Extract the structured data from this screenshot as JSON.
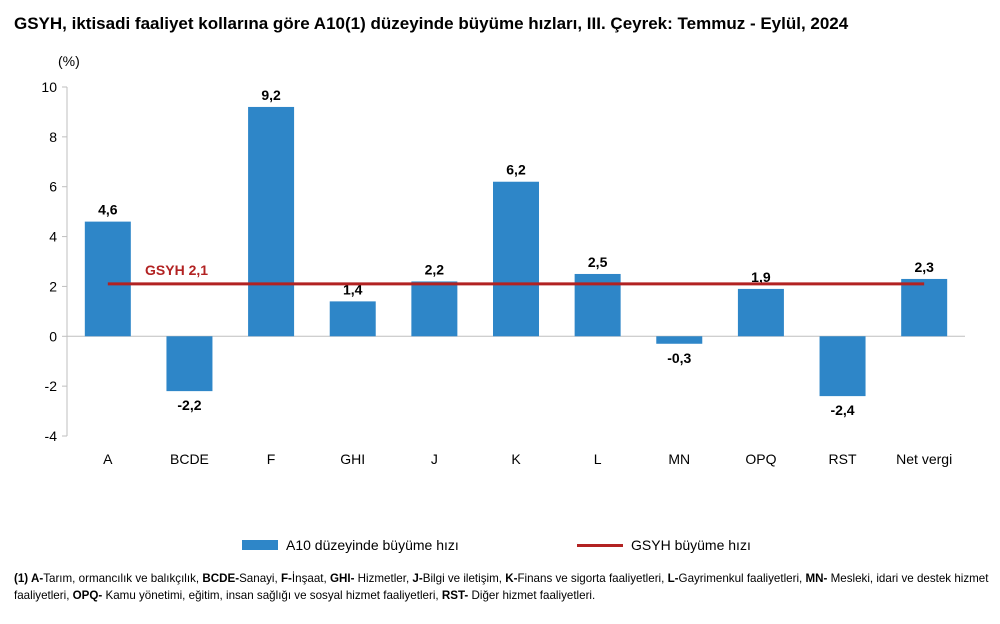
{
  "title": "GSYH, iktisadi faaliyet kollarına göre A10(1) düzeyinde büyüme hızları, III. Çeyrek: Temmuz - Eylül, 2024",
  "colors": {
    "bar": "#2e86c8",
    "line": "#b22222",
    "axis": "#bfbfbf"
  },
  "chart_data": {
    "type": "bar",
    "categories": [
      "A",
      "BCDE",
      "F",
      "GHI",
      "J",
      "K",
      "L",
      "MN",
      "OPQ",
      "RST",
      "Net vergi"
    ],
    "series": [
      {
        "name": "A10 düzeyinde büyüme hızı",
        "values": [
          4.6,
          -2.2,
          9.2,
          1.4,
          2.2,
          6.2,
          2.5,
          -0.3,
          1.9,
          -2.4,
          2.3
        ]
      }
    ],
    "data_labels": [
      "4,6",
      "-2,2",
      "9,2",
      "1,4",
      "2,2",
      "6,2",
      "2,5",
      "-0,3",
      "1,9",
      "-2,4",
      "2,3"
    ],
    "reference_line": {
      "name": "GSYH büyüme hızı",
      "value": 2.1,
      "label": "GSYH 2,1"
    },
    "ylabel": "(%)",
    "ylim": [
      -4,
      10
    ],
    "yticks": [
      -4,
      -2,
      0,
      2,
      4,
      6,
      8,
      10
    ],
    "ytick_labels": [
      "-4",
      "-2",
      "0",
      "2",
      "4",
      "6",
      "8",
      "10"
    ],
    "grid": false,
    "legend_position": "bottom"
  },
  "legend": {
    "bar_label": "A10 düzeyinde büyüme hızı",
    "line_label": "GSYH büyüme hızı"
  },
  "footnote": [
    {
      "bold": "(1) A-",
      "text": "Tarım, ormancılık ve balıkçılık, "
    },
    {
      "bold": "BCDE-",
      "text": "Sanayi, "
    },
    {
      "bold": "F-",
      "text": "İnşaat, "
    },
    {
      "bold": "GHI-",
      "text": " Hizmetler, "
    },
    {
      "bold": "J-",
      "text": "Bilgi ve iletişim, "
    },
    {
      "bold": "K-",
      "text": "Finans ve sigorta faaliyetleri, "
    },
    {
      "bold": "L-",
      "text": "Gayrimenkul faaliyetleri, "
    },
    {
      "bold": "MN-",
      "text": " Mesleki, idari ve destek hizmet faaliyetleri, "
    },
    {
      "bold": "OPQ-",
      "text": " Kamu yönetimi, eğitim, insan sağlığı ve sosyal hizmet faaliyetleri, "
    },
    {
      "bold": "RST-",
      "text": " Diğer hizmet faaliyetleri."
    }
  ]
}
